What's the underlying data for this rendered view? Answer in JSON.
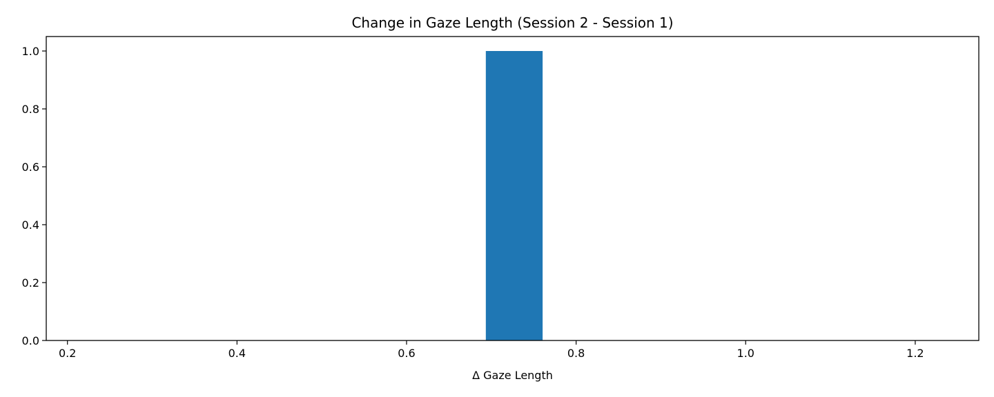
{
  "chart_data": {
    "type": "bar",
    "title": "Change in Gaze Length (Session 2 - Session 1)",
    "xlabel": "Δ Gaze Length",
    "ylabel": "",
    "xlim": [
      0.175,
      1.275
    ],
    "ylim": [
      0.0,
      1.05
    ],
    "xticks": [
      0.2,
      0.4,
      0.6,
      0.8,
      1.0,
      1.2
    ],
    "xtick_labels": [
      "0.2",
      "0.4",
      "0.6",
      "0.8",
      "1.0",
      "1.2"
    ],
    "yticks": [
      0.0,
      0.2,
      0.4,
      0.6,
      0.8,
      1.0
    ],
    "ytick_labels": [
      "0.0",
      "0.2",
      "0.4",
      "0.6",
      "0.8",
      "1.0"
    ],
    "bars": [
      {
        "x_start": 0.6935,
        "x_end": 0.7605,
        "value": 1
      }
    ],
    "bar_color": "#1f77b4",
    "grid": false,
    "legend": null
  }
}
